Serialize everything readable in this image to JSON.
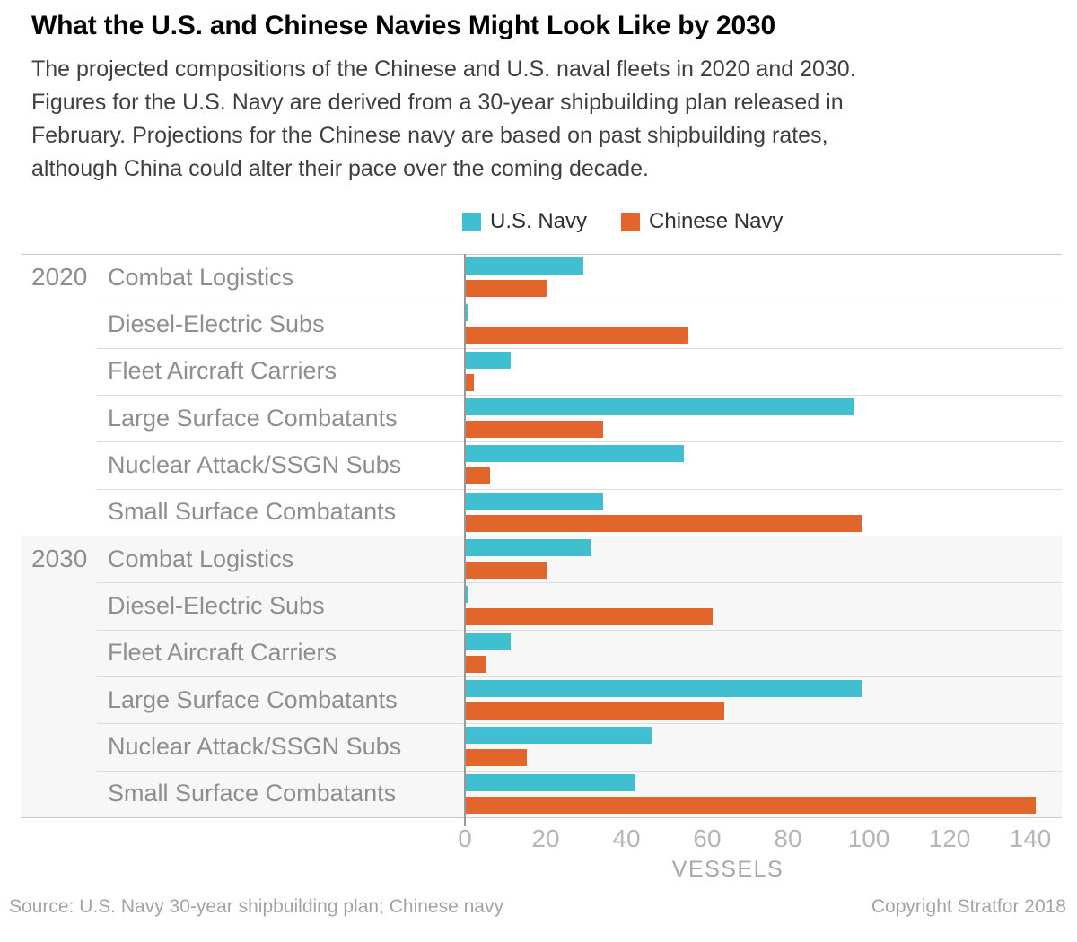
{
  "title": "What the U.S. and Chinese Navies Might Look Like by 2030",
  "subtitle": "The projected compositions of the Chinese and U.S. naval fleets in 2020 and 2030. Figures for the U.S. Navy are derived from a 30-year shipbuilding plan released in February. Projections for the Chinese navy are based on past shipbuilding rates, although China could alter their pace over the coming decade.",
  "legend": [
    {
      "label": "U.S. Navy",
      "color": "#3FBFD0"
    },
    {
      "label": "Chinese Navy",
      "color": "#E2662B"
    }
  ],
  "colors": {
    "us_navy": "#3FBFD0",
    "chinese_navy": "#E2662B",
    "section_border": "#c9c9c9",
    "row_separator": "#dcdcdc",
    "shaded_section_bg": "#f7f7f7",
    "axis_line": "#999999"
  },
  "chart_data": {
    "type": "bar",
    "orientation": "horizontal",
    "series_names": [
      "U.S. Navy",
      "Chinese Navy"
    ],
    "groups": [
      {
        "year": "2020",
        "rows": [
          {
            "category": "Combat Logistics",
            "us": 29,
            "cn": 20
          },
          {
            "category": "Diesel-Electric Subs",
            "us": 0,
            "cn": 55
          },
          {
            "category": "Fleet Aircraft Carriers",
            "us": 11,
            "cn": 2
          },
          {
            "category": "Large Surface Combatants",
            "us": 96,
            "cn": 34
          },
          {
            "category": "Nuclear Attack/SSGN Subs",
            "us": 54,
            "cn": 6
          },
          {
            "category": "Small Surface Combatants",
            "us": 34,
            "cn": 98
          }
        ]
      },
      {
        "year": "2030",
        "rows": [
          {
            "category": "Combat Logistics",
            "us": 31,
            "cn": 20
          },
          {
            "category": "Diesel-Electric Subs",
            "us": 0,
            "cn": 61
          },
          {
            "category": "Fleet Aircraft Carriers",
            "us": 11,
            "cn": 5
          },
          {
            "category": "Large Surface Combatants",
            "us": 98,
            "cn": 64
          },
          {
            "category": "Nuclear Attack/SSGN Subs",
            "us": 46,
            "cn": 15
          },
          {
            "category": "Small Surface Combatants",
            "us": 42,
            "cn": 141
          }
        ]
      }
    ],
    "xlabel": "VESSELS",
    "xticks": [
      0,
      20,
      40,
      60,
      80,
      100,
      120,
      140
    ],
    "xlim": [
      0,
      148
    ],
    "grid": "horizontal-row-separators-only",
    "legend_position": "top-center"
  },
  "footer": {
    "source": "Source: U.S. Navy 30-year shipbuilding plan; Chinese navy",
    "copyright": "Copyright Stratfor 2018"
  }
}
